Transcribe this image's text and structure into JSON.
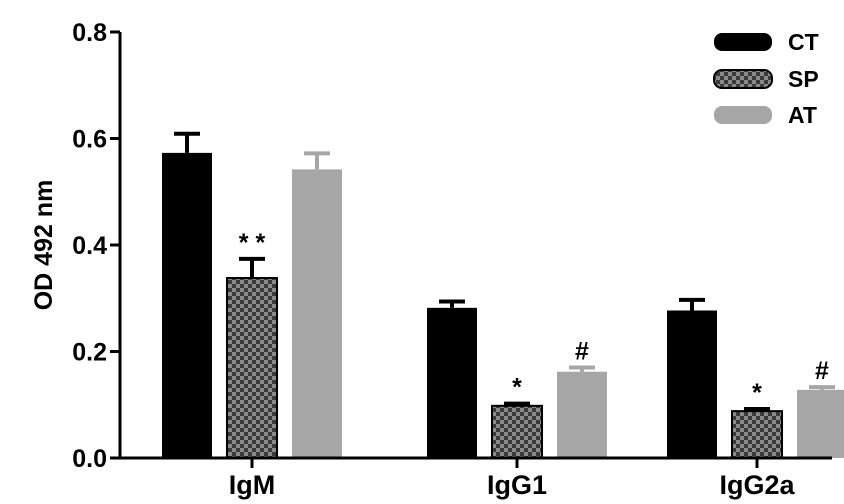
{
  "chart_data": {
    "type": "bar",
    "title": "",
    "xlabel": "",
    "ylabel": "OD 492 nm",
    "ylim": [
      0,
      0.8
    ],
    "yticks": [
      "0.0",
      "0.2",
      "0.4",
      "0.6",
      "0.8"
    ],
    "categories": [
      "IgM",
      "IgG1",
      "IgG2a"
    ],
    "grid": false,
    "legend_position": "top-right",
    "series": [
      {
        "name": "CT",
        "color": "#000000",
        "pattern": "solid",
        "values": [
          0.573,
          0.282,
          0.277
        ],
        "errors": [
          0.036,
          0.012,
          0.02
        ],
        "annotations": [
          "",
          "",
          ""
        ]
      },
      {
        "name": "SP",
        "color": "#555555",
        "pattern": "checkered",
        "values": [
          0.338,
          0.098,
          0.088
        ],
        "errors": [
          0.036,
          0.004,
          0.004
        ],
        "annotations": [
          "* *",
          "*",
          "*"
        ]
      },
      {
        "name": "AT",
        "color": "#a6a6a6",
        "pattern": "solid",
        "values": [
          0.542,
          0.162,
          0.128
        ],
        "errors": [
          0.03,
          0.008,
          0.005
        ],
        "annotations": [
          "",
          "#",
          "#"
        ]
      }
    ]
  }
}
